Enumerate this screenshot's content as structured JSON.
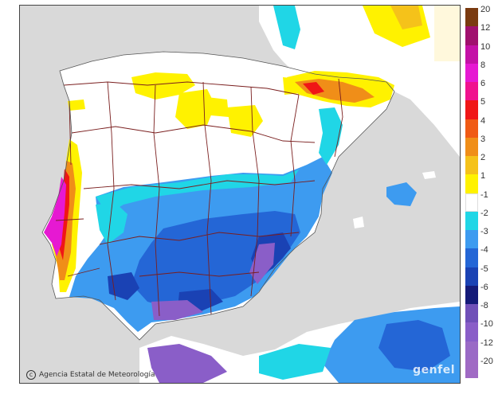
{
  "map": {
    "credit": "Agencia Estatal de Meteorología",
    "watermark": "genfel",
    "land_color": "#ffffff",
    "sea_color": "#d9d9d9",
    "border_color": "#7a1e1e"
  },
  "legend": {
    "items": [
      {
        "label": "20",
        "color": "#7a3a10"
      },
      {
        "label": "12",
        "color": "#a0106e"
      },
      {
        "label": "10",
        "color": "#c411a7"
      },
      {
        "label": "8",
        "color": "#e619d2"
      },
      {
        "label": "6",
        "color": "#f0128e"
      },
      {
        "label": "5",
        "color": "#f01616"
      },
      {
        "label": "4",
        "color": "#f05a14"
      },
      {
        "label": "3",
        "color": "#f08e18"
      },
      {
        "label": "2",
        "color": "#f5c21a"
      },
      {
        "label": "1",
        "color": "#fff200"
      },
      {
        "label": "-1",
        "color": "#ffffff"
      },
      {
        "label": "-2",
        "color": "#20d6e6"
      },
      {
        "label": "-3",
        "color": "#3d9bf0"
      },
      {
        "label": "-4",
        "color": "#2466d6"
      },
      {
        "label": "-5",
        "color": "#1a42b4"
      },
      {
        "label": "-6",
        "color": "#141a78"
      },
      {
        "label": "-8",
        "color": "#7050b8"
      },
      {
        "label": "-10",
        "color": "#8a5ec8"
      },
      {
        "label": "-12",
        "color": "#9a6ac6"
      },
      {
        "label": "-20",
        "color": "#a06ac4"
      }
    ]
  }
}
